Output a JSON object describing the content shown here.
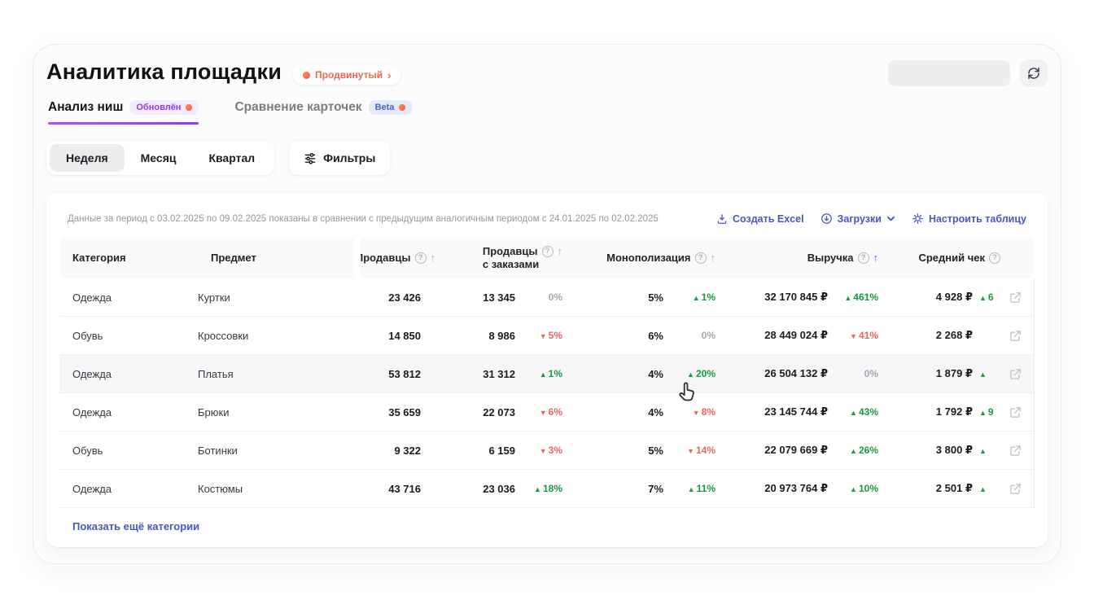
{
  "header": {
    "title": "Аналитика площадки",
    "plan_badge": "Продвинутый",
    "plan_chevron": "›"
  },
  "tabs": [
    {
      "label": "Анализ ниш",
      "badge": "Обновлён",
      "active": true
    },
    {
      "label": "Сравнение карточек",
      "badge": "Beta",
      "active": false
    }
  ],
  "periods": [
    {
      "label": "Неделя",
      "active": true
    },
    {
      "label": "Месяц",
      "active": false
    },
    {
      "label": "Квартал",
      "active": false
    }
  ],
  "filters_label": "Фильтры",
  "table": {
    "period_info": "Данные за период с 03.02.2025 по 09.02.2025 показаны в сравнении с предыдущим аналогичным периодом с 24.01.2025 по 02.02.2025",
    "actions": {
      "excel": "Создать Excel",
      "downloads": "Загрузки",
      "configure": "Настроить таблицу"
    },
    "columns": [
      {
        "label": "Категория"
      },
      {
        "label": "Предмет"
      },
      {
        "label": "Продавцы",
        "help": true,
        "sort": true
      },
      {
        "label": "Продавцы",
        "sub": "с заказами",
        "help": true,
        "sort": true
      },
      {
        "label": "Монополизация",
        "help": true,
        "sort": true
      },
      {
        "label": "Выручка",
        "help": true,
        "sort": true,
        "sort_active": true
      },
      {
        "label": "Средний чек",
        "help": true
      }
    ],
    "rows": [
      {
        "category": "Одежда",
        "item": "Куртки",
        "sellers": "23 426",
        "sellers_orders": "13 345",
        "so_delta": {
          "dir": "none",
          "text": "0%"
        },
        "monopoly": "5%",
        "mono_delta": {
          "dir": "up",
          "text": "1%"
        },
        "revenue": "32 170 845 ₽",
        "rev_delta": {
          "dir": "up",
          "text": "461%"
        },
        "avg_check": "4 928 ₽",
        "avg_delta": {
          "dir": "up",
          "text": "6"
        },
        "hovered": false
      },
      {
        "category": "Обувь",
        "item": "Кроссовки",
        "sellers": "14 850",
        "sellers_orders": "8 986",
        "so_delta": {
          "dir": "down",
          "text": "5%"
        },
        "monopoly": "6%",
        "mono_delta": {
          "dir": "none",
          "text": "0%"
        },
        "revenue": "28 449 024 ₽",
        "rev_delta": {
          "dir": "down",
          "text": "41%"
        },
        "avg_check": "2 268 ₽",
        "avg_delta": null,
        "hovered": false
      },
      {
        "category": "Одежда",
        "item": "Платья",
        "sellers": "53 812",
        "sellers_orders": "31 312",
        "so_delta": {
          "dir": "up",
          "text": "1%"
        },
        "monopoly": "4%",
        "mono_delta": {
          "dir": "up",
          "text": "20%"
        },
        "revenue": "26 504 132 ₽",
        "rev_delta": {
          "dir": "none",
          "text": "0%"
        },
        "avg_check": "1 879 ₽",
        "avg_delta": {
          "dir": "up",
          "text": ""
        },
        "hovered": true
      },
      {
        "category": "Одежда",
        "item": "Брюки",
        "sellers": "35 659",
        "sellers_orders": "22 073",
        "so_delta": {
          "dir": "down",
          "text": "6%"
        },
        "monopoly": "4%",
        "mono_delta": {
          "dir": "down",
          "text": "8%"
        },
        "revenue": "23 145 744 ₽",
        "rev_delta": {
          "dir": "up",
          "text": "43%"
        },
        "avg_check": "1 792 ₽",
        "avg_delta": {
          "dir": "up",
          "text": "9"
        },
        "hovered": false
      },
      {
        "category": "Обувь",
        "item": "Ботинки",
        "sellers": "9 322",
        "sellers_orders": "6 159",
        "so_delta": {
          "dir": "down",
          "text": "3%"
        },
        "monopoly": "5%",
        "mono_delta": {
          "dir": "down",
          "text": "14%"
        },
        "revenue": "22 079 669 ₽",
        "rev_delta": {
          "dir": "up",
          "text": "26%"
        },
        "avg_check": "3 800 ₽",
        "avg_delta": {
          "dir": "up",
          "text": ""
        },
        "hovered": false
      },
      {
        "category": "Одежда",
        "item": "Костюмы",
        "sellers": "43 716",
        "sellers_orders": "23 036",
        "so_delta": {
          "dir": "up",
          "text": "18%"
        },
        "monopoly": "7%",
        "mono_delta": {
          "dir": "up",
          "text": "11%"
        },
        "revenue": "20 973 764 ₽",
        "rev_delta": {
          "dir": "up",
          "text": "10%"
        },
        "avg_check": "2 501 ₽",
        "avg_delta": {
          "dir": "up",
          "text": ""
        },
        "hovered": false
      }
    ],
    "show_more": "Показать ещё категории"
  },
  "colors": {
    "accent_purple": "#8b46f0",
    "link_blue": "#4656c6",
    "up_green": "#169b3e",
    "down_red": "#ef655b",
    "neutral_gray": "#a7a7ae",
    "badge_orange": "#f2512e"
  }
}
